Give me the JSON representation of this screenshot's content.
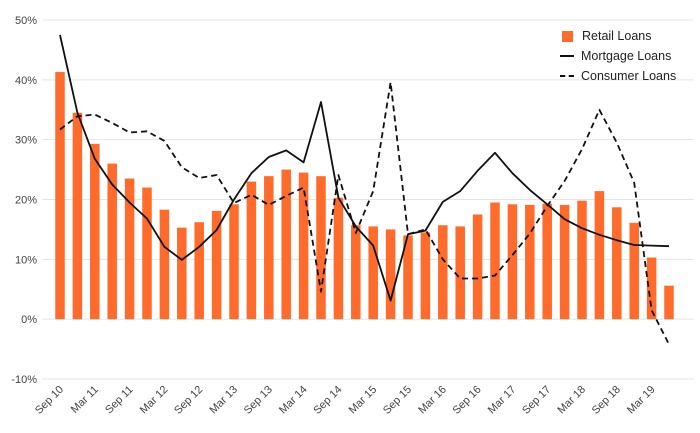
{
  "chart_data": {
    "type": "bar",
    "title": "",
    "xlabel": "",
    "ylabel": "",
    "ylim": [
      -10,
      50
    ],
    "yticks": [
      "50%",
      "40%",
      "30%",
      "20%",
      "10%",
      "0%",
      "-10%"
    ],
    "ytick_values": [
      50,
      40,
      30,
      20,
      10,
      0,
      -10
    ],
    "xticks": [
      "Sep 10",
      "Mar 11",
      "Sep 11",
      "Mar 12",
      "Sep 12",
      "Mar 13",
      "Sep 13",
      "Mar 14",
      "Sep 14",
      "Mar 15",
      "Sep 15",
      "Mar 16",
      "Sep 16",
      "Mar 17",
      "Sep 17",
      "Mar 18",
      "Sep 18",
      "Mar 19"
    ],
    "x_start": "Sep 10",
    "period": "quarterly",
    "legend_position": "top-right",
    "series": [
      {
        "name": "Retail Loans",
        "style": "bar",
        "color": "#ff6b2b",
        "values": [
          41.3,
          34.5,
          29.3,
          26.0,
          23.5,
          22.0,
          18.3,
          15.3,
          16.2,
          18.1,
          19.2,
          23.0,
          23.9,
          25.0,
          24.5,
          23.9,
          20.3,
          15.7,
          15.5,
          15.0,
          14.0,
          14.5,
          15.7,
          15.5,
          17.5,
          19.5,
          19.2,
          19.1,
          19.3,
          19.1,
          19.8,
          21.4,
          18.7,
          16.1,
          10.3,
          5.6
        ]
      },
      {
        "name": "Mortgage Loans",
        "style": "solid-line",
        "color": "#111111",
        "values": [
          47.5,
          34.5,
          26.8,
          22.5,
          19.5,
          16.8,
          12.1,
          9.9,
          12.1,
          14.9,
          20.0,
          24.4,
          27.1,
          28.2,
          26.2,
          36.3,
          20.3,
          15.5,
          12.3,
          3.1,
          14.2,
          14.8,
          19.6,
          21.4,
          24.8,
          27.8,
          24.4,
          21.6,
          19.2,
          16.7,
          15.2,
          14.1,
          13.2,
          12.4,
          12.3,
          12.2
        ]
      },
      {
        "name": "Consumer Loans",
        "style": "dashed-line",
        "color": "#111111",
        "values": [
          31.7,
          33.9,
          34.2,
          32.8,
          31.2,
          31.4,
          29.8,
          25.4,
          23.6,
          24.1,
          19.4,
          20.8,
          19.1,
          20.6,
          22.0,
          4.6,
          24.1,
          14.4,
          21.4,
          39.6,
          14.2,
          15.0,
          10.0,
          6.8,
          6.8,
          7.3,
          10.7,
          14.3,
          18.9,
          23.1,
          28.4,
          35.0,
          29.5,
          22.8,
          1.5,
          -4.2
        ]
      }
    ]
  }
}
